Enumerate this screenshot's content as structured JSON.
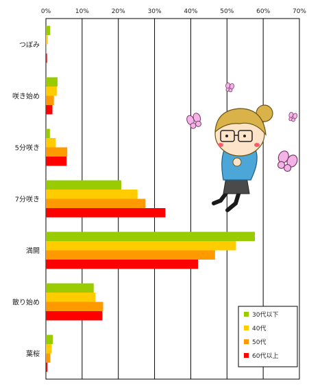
{
  "chart_data": {
    "type": "bar",
    "orientation": "horizontal",
    "categories": [
      "つぼみ",
      "咲き始め",
      "5分咲き",
      "7分咲き",
      "満開",
      "散り始め",
      "葉桜"
    ],
    "series": [
      {
        "name": "30代以下",
        "color": "#99cc00",
        "values": [
          1.2,
          3.2,
          1.1,
          20.8,
          57.7,
          13.2,
          1.9
        ]
      },
      {
        "name": "40代",
        "color": "#ffcc00",
        "values": [
          0.5,
          3.0,
          2.7,
          25.3,
          52.5,
          13.7,
          1.6
        ]
      },
      {
        "name": "50代",
        "color": "#ff9900",
        "values": [
          0.2,
          2.2,
          5.9,
          27.5,
          46.7,
          15.8,
          1.2
        ]
      },
      {
        "name": "60代以上",
        "color": "#ff0000",
        "values": [
          0.3,
          1.8,
          5.7,
          33.0,
          42.0,
          15.6,
          0.4
        ]
      }
    ],
    "xlim": [
      0,
      70
    ],
    "xticks": [
      "0%",
      "10%",
      "20%",
      "30%",
      "40%",
      "50%",
      "60%",
      "70%"
    ],
    "grid": true,
    "legend_position": "bottom-right"
  }
}
